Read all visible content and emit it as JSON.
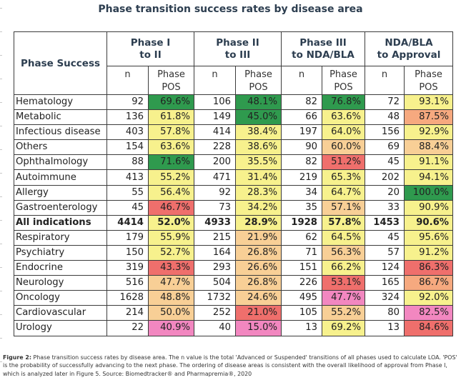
{
  "title": "Phase transition success rates by disease area",
  "table": {
    "row_header": "Phase Success",
    "phases": [
      {
        "line1": "Phase I",
        "line2": "to II"
      },
      {
        "line1": "Phase II",
        "line2": "to III"
      },
      {
        "line1": "Phase III",
        "line2": "to NDA/BLA"
      },
      {
        "line1": "NDA/BLA",
        "line2": "to Approval"
      }
    ],
    "sub_n": "n",
    "sub_pos_line1": "Phase",
    "sub_pos_line2": "POS",
    "colors": {
      "dark_green": "#2f9a4e",
      "yellow": "#f7f18d",
      "light_orange": "#f8cf96",
      "orange": "#f6a97f",
      "red": "#ef6f6c",
      "pink": "#f287c0"
    },
    "rows": [
      {
        "name": "Hematology",
        "bold": false,
        "cells": [
          {
            "n": "92",
            "pos": "69.6%",
            "color": "dark_green"
          },
          {
            "n": "106",
            "pos": "48.1%",
            "color": "dark_green"
          },
          {
            "n": "82",
            "pos": "76.8%",
            "color": "dark_green"
          },
          {
            "n": "72",
            "pos": "93.1%",
            "color": "yellow"
          }
        ]
      },
      {
        "name": "Metabolic",
        "bold": false,
        "cells": [
          {
            "n": "136",
            "pos": "61.8%",
            "color": "yellow"
          },
          {
            "n": "149",
            "pos": "45.0%",
            "color": "dark_green"
          },
          {
            "n": "66",
            "pos": "63.6%",
            "color": "yellow"
          },
          {
            "n": "48",
            "pos": "87.5%",
            "color": "orange"
          }
        ]
      },
      {
        "name": "Infectious disease",
        "bold": false,
        "cells": [
          {
            "n": "403",
            "pos": "57.8%",
            "color": "yellow"
          },
          {
            "n": "414",
            "pos": "38.4%",
            "color": "yellow"
          },
          {
            "n": "197",
            "pos": "64.0%",
            "color": "yellow"
          },
          {
            "n": "156",
            "pos": "92.9%",
            "color": "yellow"
          }
        ]
      },
      {
        "name": "Others",
        "bold": false,
        "cells": [
          {
            "n": "154",
            "pos": "63.6%",
            "color": "yellow"
          },
          {
            "n": "228",
            "pos": "38.6%",
            "color": "yellow"
          },
          {
            "n": "90",
            "pos": "60.0%",
            "color": "light_orange"
          },
          {
            "n": "69",
            "pos": "88.4%",
            "color": "light_orange"
          }
        ]
      },
      {
        "name": "Ophthalmology",
        "bold": false,
        "cells": [
          {
            "n": "88",
            "pos": "71.6%",
            "color": "dark_green"
          },
          {
            "n": "200",
            "pos": "35.5%",
            "color": "yellow"
          },
          {
            "n": "82",
            "pos": "51.2%",
            "color": "red"
          },
          {
            "n": "45",
            "pos": "91.1%",
            "color": "yellow"
          }
        ]
      },
      {
        "name": "Autoimmune",
        "bold": false,
        "cells": [
          {
            "n": "413",
            "pos": "55.2%",
            "color": "yellow"
          },
          {
            "n": "471",
            "pos": "31.4%",
            "color": "yellow"
          },
          {
            "n": "219",
            "pos": "65.3%",
            "color": "yellow"
          },
          {
            "n": "202",
            "pos": "94.1%",
            "color": "yellow"
          }
        ]
      },
      {
        "name": "Allergy",
        "bold": false,
        "cells": [
          {
            "n": "55",
            "pos": "56.4%",
            "color": "yellow"
          },
          {
            "n": "92",
            "pos": "28.3%",
            "color": "yellow"
          },
          {
            "n": "34",
            "pos": "64.7%",
            "color": "yellow"
          },
          {
            "n": "20",
            "pos": "100.0%",
            "color": "dark_green"
          }
        ]
      },
      {
        "name": "Gastroenterology",
        "bold": false,
        "cells": [
          {
            "n": "45",
            "pos": "46.7%",
            "color": "red"
          },
          {
            "n": "73",
            "pos": "34.2%",
            "color": "yellow"
          },
          {
            "n": "35",
            "pos": "57.1%",
            "color": "light_orange"
          },
          {
            "n": "33",
            "pos": "90.9%",
            "color": "yellow"
          }
        ]
      },
      {
        "name": "All indications",
        "bold": true,
        "cells": [
          {
            "n": "4414",
            "pos": "52.0%",
            "color": "yellow"
          },
          {
            "n": "4933",
            "pos": "28.9%",
            "color": "yellow"
          },
          {
            "n": "1928",
            "pos": "57.8%",
            "color": "yellow"
          },
          {
            "n": "1453",
            "pos": "90.6%",
            "color": "yellow"
          }
        ]
      },
      {
        "name": "Respiratory",
        "bold": false,
        "cells": [
          {
            "n": "179",
            "pos": "55.9%",
            "color": "yellow"
          },
          {
            "n": "215",
            "pos": "21.9%",
            "color": "light_orange"
          },
          {
            "n": "62",
            "pos": "64.5%",
            "color": "yellow"
          },
          {
            "n": "45",
            "pos": "95.6%",
            "color": "yellow"
          }
        ]
      },
      {
        "name": "Psychiatry",
        "bold": false,
        "cells": [
          {
            "n": "150",
            "pos": "52.7%",
            "color": "yellow"
          },
          {
            "n": "164",
            "pos": "26.8%",
            "color": "light_orange"
          },
          {
            "n": "71",
            "pos": "56.3%",
            "color": "light_orange"
          },
          {
            "n": "57",
            "pos": "91.2%",
            "color": "yellow"
          }
        ]
      },
      {
        "name": "Endocrine",
        "bold": false,
        "cells": [
          {
            "n": "319",
            "pos": "43.3%",
            "color": "red"
          },
          {
            "n": "293",
            "pos": "26.6%",
            "color": "light_orange"
          },
          {
            "n": "151",
            "pos": "66.2%",
            "color": "yellow"
          },
          {
            "n": "124",
            "pos": "86.3%",
            "color": "red"
          }
        ]
      },
      {
        "name": "Neurology",
        "bold": false,
        "cells": [
          {
            "n": "516",
            "pos": "47.7%",
            "color": "light_orange"
          },
          {
            "n": "504",
            "pos": "26.8%",
            "color": "light_orange"
          },
          {
            "n": "226",
            "pos": "53.1%",
            "color": "red"
          },
          {
            "n": "165",
            "pos": "86.7%",
            "color": "orange"
          }
        ]
      },
      {
        "name": "Oncology",
        "bold": false,
        "cells": [
          {
            "n": "1628",
            "pos": "48.8%",
            "color": "light_orange"
          },
          {
            "n": "1732",
            "pos": "24.6%",
            "color": "light_orange"
          },
          {
            "n": "495",
            "pos": "47.7%",
            "color": "pink"
          },
          {
            "n": "324",
            "pos": "92.0%",
            "color": "yellow"
          }
        ]
      },
      {
        "name": "Cardiovascular",
        "bold": false,
        "cells": [
          {
            "n": "214",
            "pos": "50.0%",
            "color": "light_orange"
          },
          {
            "n": "252",
            "pos": "21.0%",
            "color": "red"
          },
          {
            "n": "105",
            "pos": "55.2%",
            "color": "light_orange"
          },
          {
            "n": "80",
            "pos": "82.5%",
            "color": "pink"
          }
        ]
      },
      {
        "name": "Urology",
        "bold": false,
        "cells": [
          {
            "n": "22",
            "pos": "40.9%",
            "color": "pink"
          },
          {
            "n": "40",
            "pos": "15.0%",
            "color": "pink"
          },
          {
            "n": "13",
            "pos": "69.2%",
            "color": "yellow"
          },
          {
            "n": "13",
            "pos": "84.6%",
            "color": "red"
          }
        ]
      }
    ]
  },
  "caption": {
    "label": "Figure 2:",
    "text": " Phase transition success rates by disease area. The n value is the total 'Advanced or Suspended' transitions of all phases used to calculate LOA. 'POS' is the probability of successfully advancing to the next phase. The ordering of disease areas is consistent with the overall likelihood of approval from Phase I, which is analyzed later in Figure 5. Source: Biomedtracker® and Pharmapremia®, 2020"
  }
}
